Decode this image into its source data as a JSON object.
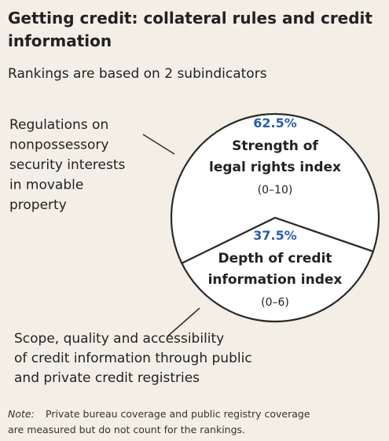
{
  "chart_data": {
    "type": "pie",
    "title_lines": [
      "Getting credit: collateral rules and credit",
      "information"
    ],
    "subtitle": "Rankings are based on 2 subindicators",
    "values": [
      62.5,
      37.5
    ],
    "value_labels": [
      "62.5%",
      "37.5%"
    ],
    "colors": [
      "#ffffff",
      "#ffffff"
    ],
    "slices": [
      {
        "label_lines": [
          "Strength of",
          "legal rights index"
        ],
        "range": "(0–10)"
      },
      {
        "label_lines": [
          "Depth of credit",
          "information index"
        ],
        "range": "(0–6)"
      }
    ],
    "annotations": [
      [
        "Regulations on",
        "nonpossessory",
        "security interests",
        "in movable",
        "property"
      ],
      [
        "Scope, quality and accessibility",
        "of credit information through public",
        "and private credit registries"
      ]
    ],
    "note_label": "Note:",
    "note_lines": [
      "Private bureau coverage and public registry coverage",
      "are measured but do not count for the rankings."
    ]
  }
}
